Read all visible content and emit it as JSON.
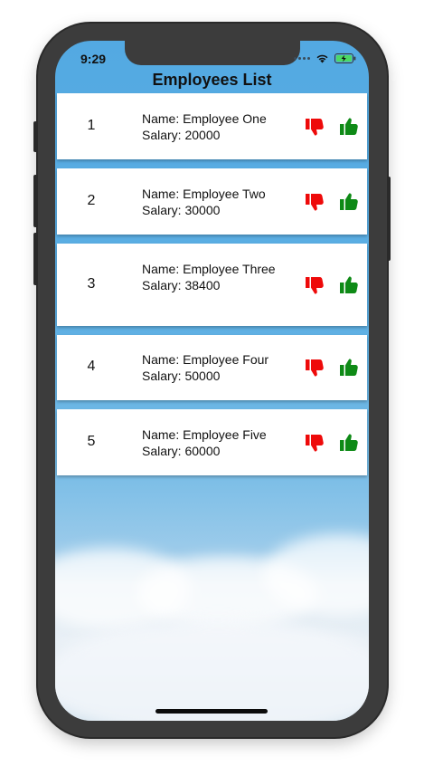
{
  "status_bar": {
    "time": "9:29"
  },
  "header": {
    "title": "Employees List"
  },
  "employees": [
    {
      "index": "1",
      "name": "Name: Employee One",
      "salary": "Salary: 20000"
    },
    {
      "index": "2",
      "name": "Name: Employee Two",
      "salary": "Salary: 30000"
    },
    {
      "index": "3",
      "name": "Name: Employee Three",
      "salary": "Salary: 38400"
    },
    {
      "index": "4",
      "name": "Name: Employee Four",
      "salary": "Salary: 50000"
    },
    {
      "index": "5",
      "name": "Name: Employee Five",
      "salary": "Salary: 60000"
    }
  ],
  "icons": {
    "dislike": "thumbs-down-icon",
    "like": "thumbs-up-icon"
  },
  "colors": {
    "dislike": "#ee0a0a",
    "like": "#0e8a16",
    "battery": "#4cd964"
  }
}
